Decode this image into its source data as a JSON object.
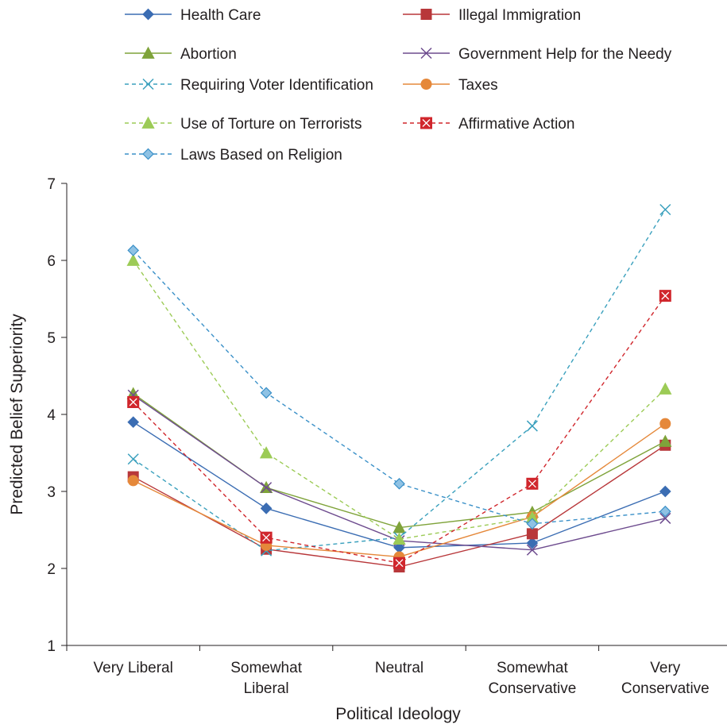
{
  "chart_data": {
    "type": "line",
    "xlabel": "Political Ideology",
    "ylabel": "Predicted Belief Superiority",
    "ylim": [
      1,
      7
    ],
    "yticks": [
      "1",
      "2",
      "3",
      "4",
      "5",
      "6",
      "7"
    ],
    "categories": [
      [
        "Very Liberal"
      ],
      [
        "Somewhat",
        "Liberal"
      ],
      [
        "Neutral"
      ],
      [
        "Somewhat",
        "Conservative"
      ],
      [
        "Very",
        "Conservative"
      ]
    ],
    "grid": false,
    "legend_position": "top",
    "series": [
      {
        "name": "Health Care",
        "color": "#3b6db3",
        "dash": false,
        "marker": "diamond",
        "values": [
          3.9,
          2.78,
          2.27,
          2.33,
          3.0
        ]
      },
      {
        "name": "Illegal Immigration",
        "color": "#b8373a",
        "dash": false,
        "marker": "square",
        "values": [
          3.19,
          2.25,
          2.02,
          2.45,
          3.6
        ]
      },
      {
        "name": "Abortion",
        "color": "#7fa33a",
        "dash": false,
        "marker": "triangle",
        "values": [
          4.27,
          3.05,
          2.53,
          2.73,
          3.65
        ]
      },
      {
        "name": "Government Help for the Needy",
        "color": "#6d4b8e",
        "dash": false,
        "marker": "x",
        "values": [
          4.25,
          3.05,
          2.36,
          2.24,
          2.65
        ]
      },
      {
        "name": "Requiring Voter Identification",
        "color": "#3aa0bd",
        "dash": true,
        "marker": "x",
        "values": [
          3.42,
          2.23,
          2.4,
          3.85,
          6.66
        ]
      },
      {
        "name": "Taxes",
        "color": "#e5883a",
        "dash": false,
        "marker": "circle",
        "values": [
          3.14,
          2.3,
          2.15,
          2.67,
          3.88
        ]
      },
      {
        "name": "Use of Torture on Terrorists",
        "color": "#9ccb56",
        "dash": true,
        "marker": "triangle",
        "values": [
          6.0,
          3.5,
          2.38,
          2.66,
          4.33
        ]
      },
      {
        "name": "Affirmative Action",
        "color": "#d0262c",
        "dash": true,
        "marker": "boxx",
        "values": [
          4.16,
          2.4,
          2.07,
          3.1,
          5.54
        ]
      },
      {
        "name": "Laws Based on Religion",
        "color": "#3a90c8",
        "dash": true,
        "marker": "diamond-light",
        "values": [
          6.13,
          4.28,
          3.1,
          2.58,
          2.74
        ]
      }
    ]
  }
}
